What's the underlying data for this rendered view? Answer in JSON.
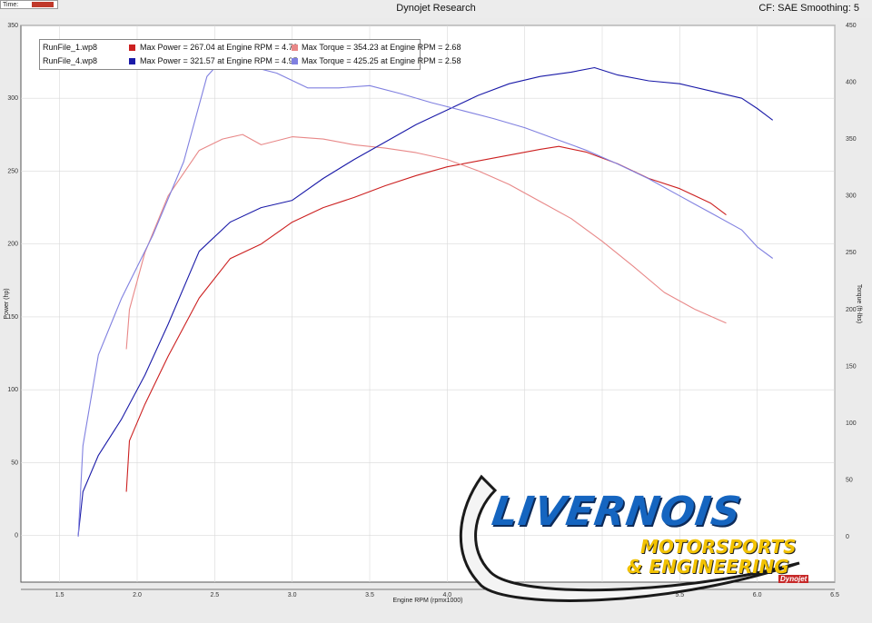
{
  "header": {
    "time_label": "Time:",
    "title": "Dynojet Research",
    "cf": "CF: SAE Smoothing: 5"
  },
  "legend": [
    {
      "file": "RunFile_1.wp8",
      "power_color": "#cc2020",
      "power_text": "Max Power = 267.04 at Engine RPM = 4.72",
      "torque_color": "#e88888",
      "torque_text": "Max Torque = 354.23 at Engine RPM = 2.68"
    },
    {
      "file": "RunFile_4.wp8",
      "power_color": "#1a1aa8",
      "power_text": "Max Power = 321.57 at Engine RPM = 4.95",
      "torque_color": "#8080e0",
      "torque_text": "Max Torque = 425.25 at Engine RPM = 2.58"
    }
  ],
  "logo": {
    "main": "LIVERNOIS",
    "line2": "MOTORSPORTS",
    "line3": "& ENGINEERING",
    "brand": "Dynojet"
  },
  "chart_data": {
    "type": "line",
    "xlabel": "Engine RPM (rpmx1000)",
    "ylabel": "Power (hp)",
    "y2label": "Torque (ft-lbs)",
    "xlim": [
      1.25,
      6.5
    ],
    "ylim": [
      -32,
      350
    ],
    "y2lim": [
      -40,
      450
    ],
    "x_ticks": [
      1.5,
      2.0,
      2.5,
      3.0,
      3.5,
      4.0,
      4.5,
      5.0,
      5.5,
      6.0,
      6.5
    ],
    "x_tick_labels": [
      "1.5",
      "2.0",
      "2.5",
      "3.0",
      "3.5",
      "4.0",
      "4.5",
      "5.0",
      "5.5",
      "6.0",
      "6.5"
    ],
    "y_ticks": [
      0,
      50,
      100,
      150,
      200,
      250,
      300,
      350
    ],
    "y2_ticks": [
      0,
      50,
      100,
      150,
      200,
      250,
      300,
      350,
      400,
      450
    ],
    "grid": true,
    "series": [
      {
        "name": "RunFile_1.wp8 Power",
        "axis": "left",
        "color": "#cc2020",
        "x": [
          1.93,
          1.95,
          2.05,
          2.2,
          2.4,
          2.6,
          2.8,
          3.0,
          3.2,
          3.4,
          3.6,
          3.8,
          4.0,
          4.2,
          4.4,
          4.6,
          4.72,
          4.9,
          5.1,
          5.3,
          5.5,
          5.7,
          5.8
        ],
        "y": [
          30,
          65,
          90,
          123,
          163,
          190,
          200,
          215,
          225,
          232,
          240,
          247,
          253,
          257,
          261,
          265,
          267,
          263,
          255,
          245,
          238,
          228,
          220
        ]
      },
      {
        "name": "RunFile_1.wp8 Torque",
        "axis": "right",
        "color": "#e88888",
        "x": [
          1.93,
          1.95,
          2.05,
          2.2,
          2.4,
          2.55,
          2.68,
          2.8,
          3.0,
          3.2,
          3.4,
          3.6,
          3.8,
          4.0,
          4.2,
          4.4,
          4.6,
          4.8,
          5.0,
          5.2,
          5.4,
          5.6,
          5.8
        ],
        "y": [
          165,
          200,
          250,
          300,
          340,
          350,
          354,
          345,
          352,
          350,
          345,
          342,
          338,
          332,
          322,
          310,
          295,
          280,
          260,
          238,
          215,
          200,
          188
        ]
      },
      {
        "name": "RunFile_4.wp8 Power",
        "axis": "left",
        "color": "#1a1aa8",
        "x": [
          1.62,
          1.65,
          1.75,
          1.9,
          2.05,
          2.2,
          2.4,
          2.6,
          2.8,
          3.0,
          3.2,
          3.4,
          3.6,
          3.8,
          4.0,
          4.2,
          4.4,
          4.6,
          4.8,
          4.95,
          5.1,
          5.3,
          5.5,
          5.7,
          5.9,
          6.0,
          6.1
        ],
        "y": [
          0,
          30,
          55,
          80,
          110,
          145,
          195,
          215,
          225,
          230,
          245,
          258,
          270,
          282,
          292,
          302,
          310,
          315,
          318,
          321,
          316,
          312,
          310,
          305,
          300,
          293,
          285
        ]
      },
      {
        "name": "RunFile_4.wp8 Torque",
        "axis": "right",
        "color": "#8080e0",
        "x": [
          1.62,
          1.65,
          1.75,
          1.9,
          2.1,
          2.3,
          2.45,
          2.58,
          2.7,
          2.9,
          3.1,
          3.3,
          3.5,
          3.7,
          3.9,
          4.1,
          4.3,
          4.5,
          4.7,
          4.9,
          5.1,
          5.3,
          5.5,
          5.7,
          5.9,
          6.0,
          6.1
        ],
        "y": [
          0,
          80,
          160,
          210,
          265,
          330,
          405,
          425,
          415,
          408,
          395,
          395,
          397,
          390,
          382,
          375,
          368,
          360,
          350,
          340,
          328,
          315,
          300,
          285,
          270,
          255,
          245
        ]
      }
    ]
  }
}
